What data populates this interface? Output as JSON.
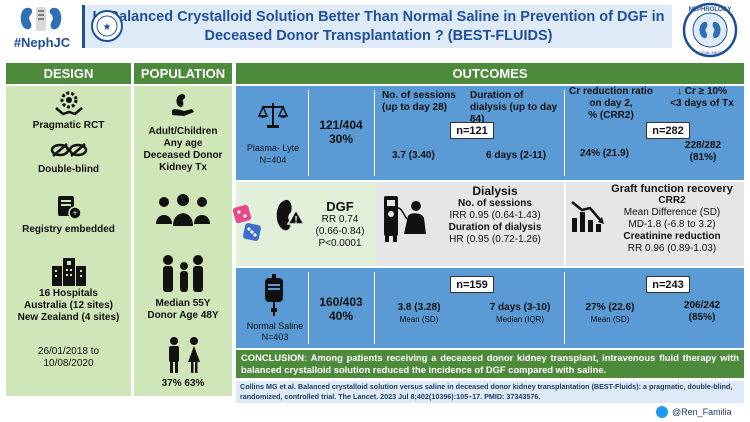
{
  "brand": {
    "name": "#NephJC",
    "seal_text": "NEPHROLOGY SOCIAL MEDIA COLLECTIVE"
  },
  "title": {
    "line1": "Is Balanced Crystalloid Solution Better Than Normal Saline in  Prevention of DGF in",
    "line2": "Deceased Donor Transplantation ? (BEST-FLUIDS)"
  },
  "headers": {
    "design": "DESIGN",
    "population": "POPULATION",
    "outcomes": "OUTCOMES"
  },
  "design": {
    "items": [
      "Pragmatic RCT",
      "Double-blind",
      "Registry embedded"
    ],
    "sites": [
      "16 Hospitals",
      "Australia (12 sites)",
      "New Zealand (4 sites)"
    ],
    "dates": [
      "26/01/2018 to",
      "10/08/2020"
    ]
  },
  "population": {
    "group": [
      "Adult/Children",
      "Any age",
      "Deceased Donor",
      "Kidney Tx"
    ],
    "age": [
      "Median 55Y",
      "Donor Age 48Y"
    ],
    "sex": "37%  63%"
  },
  "outcomes": {
    "col_heads": {
      "sessions": [
        "No. of sessions",
        "(up to day 28)"
      ],
      "duration": "Duration of dialysis (up to day 84)",
      "cr_ratio": [
        "Cr reduction ratio",
        "on day 2,",
        "% (CRR2)"
      ],
      "cr_drop": [
        "↓ Cr ≥ 10%",
        "<3 days of Tx"
      ]
    },
    "plasma": {
      "label": "Plasma- Lyte",
      "n": "N=404",
      "dgf": "121/404",
      "pct": "30%",
      "n_dial": "n=121",
      "sessions": "3.7 (3.40)",
      "duration": "6 days (2-11)",
      "n_cr": "n=282",
      "crr2": "24% (21.9)",
      "cr_drop": "228/282",
      "cr_drop_pct": "(81%)"
    },
    "middle": {
      "dgf_title": "DGF",
      "dgf_rr": "RR 0.74",
      "dgf_ci": "(0.66-0.84)",
      "dgf_p": "P<0.0001",
      "dial_title": "Dialysis",
      "dial_sessions_label": "No. of sessions",
      "dial_irr": "IRR 0.95 (0.64-1.43)",
      "dial_dur_label": "Duration of dialysis",
      "dial_hr": "HR (0.95 (0.72-1.26)",
      "graft_title": "Graft function recovery",
      "graft_crr2": "CRR2",
      "graft_md_label": "Mean Difference (SD)",
      "graft_md": "MD-1.8 (-6.8 to 3.2)",
      "graft_cr_label": "Creatinine reduction",
      "graft_rr": "RR 0.96 (0.89-1.03)"
    },
    "saline": {
      "label": "Normal Saline",
      "n": "N=403",
      "dgf": "160/403",
      "pct": "40%",
      "n_dial": "n=159",
      "sessions": "3.8 (3.28)",
      "sessions_unit": "Mean (SD)",
      "duration": "7 days (3-10)",
      "duration_unit": "Median (IQR)",
      "n_cr": "n=243",
      "crr2": "27% (22.6)",
      "crr2_unit": "Mean (SD)",
      "cr_drop": "206/242",
      "cr_drop_pct": "(85%)"
    }
  },
  "conclusion": {
    "label": "CONCLUSION:",
    "text": " Among patients receiving a deceased donor kidney transplant, intravenous fluid therapy with balanced crystalloid solution reduced the incidence of DGF compared with saline."
  },
  "citation": "Collins MG et al. Balanced crystalloid solution versus saline in deceased donor kidney transplantation (BEST-Fluids): a pragmatic, double-blind, randomized, controlled trial. The Lancet. 2023 Jul 8;402(10396):105–17. PMID: 37343576.",
  "handle": "@Ren_Familia",
  "colors": {
    "green": "#4e8a3c",
    "blue": "#5b9bd5",
    "title": "#1f4e9a"
  }
}
